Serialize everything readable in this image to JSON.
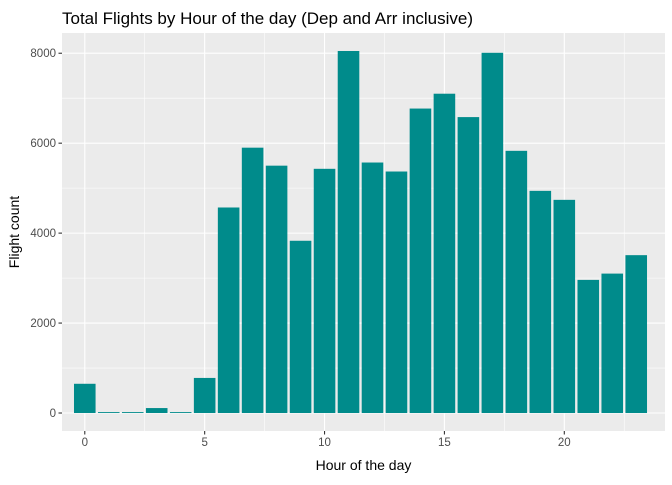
{
  "chart_data": {
    "type": "bar",
    "title": "Total Flights by Hour of the day (Dep and Arr inclusive)",
    "xlabel": "Hour of the day",
    "ylabel": "Flight count",
    "x": [
      0,
      1,
      2,
      3,
      4,
      5,
      6,
      7,
      8,
      9,
      10,
      11,
      12,
      13,
      14,
      15,
      16,
      17,
      18,
      19,
      20,
      21,
      22,
      23
    ],
    "values": [
      650,
      20,
      20,
      110,
      20,
      780,
      4570,
      5900,
      5500,
      3830,
      5430,
      8050,
      5570,
      5370,
      6770,
      7100,
      6580,
      8010,
      5830,
      4940,
      4740,
      2960,
      3100,
      3510
    ],
    "xlim": [
      -0.95,
      24.2
    ],
    "ylim": [
      -400,
      8450
    ],
    "xticks": [
      0,
      5,
      10,
      15,
      20
    ],
    "yticks": [
      0,
      2000,
      4000,
      6000,
      8000
    ],
    "xtick_labels": [
      "0",
      "5",
      "10",
      "15",
      "20"
    ],
    "ytick_labels": [
      "0",
      "2000",
      "4000",
      "6000",
      "8000"
    ],
    "bar_color": "#008B8B",
    "panel_background": "#EBEBEB",
    "grid": true,
    "legend": "none"
  }
}
